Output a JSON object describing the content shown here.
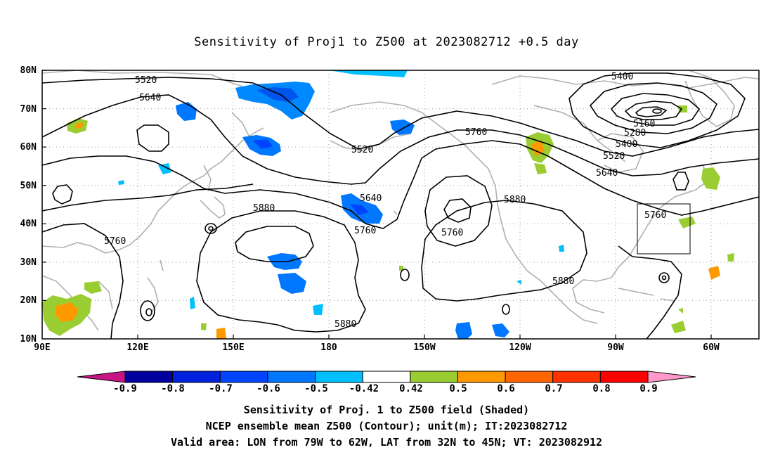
{
  "title": "Sensitivity of Proj1 to Z500 at 2023082712 +0.5 day",
  "lat_labels": [
    "80N",
    "70N",
    "60N",
    "50N",
    "40N",
    "30N",
    "20N",
    "10N"
  ],
  "lon_labels": [
    "90E",
    "120E",
    "150E",
    "180",
    "150W",
    "120W",
    "90W",
    "60W"
  ],
  "contour_labels": [
    "5520",
    "5640",
    "5400",
    "5520",
    "5760",
    "5160",
    "5280",
    "5400",
    "5520",
    "5640",
    "5640",
    "5880",
    "5760",
    "5880",
    "5760",
    "5760",
    "5760",
    "5880",
    "5880"
  ],
  "colorbar": {
    "labels": [
      "-0.9",
      "-0.8",
      "-0.7",
      "-0.6",
      "-0.5",
      "-0.42",
      "0.42",
      "0.5",
      "0.6",
      "0.7",
      "0.8",
      "0.9"
    ],
    "colors": [
      "#c71585",
      "#0000a0",
      "#0022dd",
      "#0044ff",
      "#0077ff",
      "#00bfff",
      "#ffffff",
      "#9acd32",
      "#ff9900",
      "#ff6600",
      "#ff3300",
      "#ff0000",
      "#ff99cc"
    ]
  },
  "captions": [
    "Sensitivity of Proj. 1 to Z500 field (Shaded)",
    "NCEP ensemble mean Z500 (Contour); unit(m); IT:2023082712",
    "Valid area: LON from 79W to 62W, LAT from 32N to 45N; VT: 2023082912"
  ]
}
